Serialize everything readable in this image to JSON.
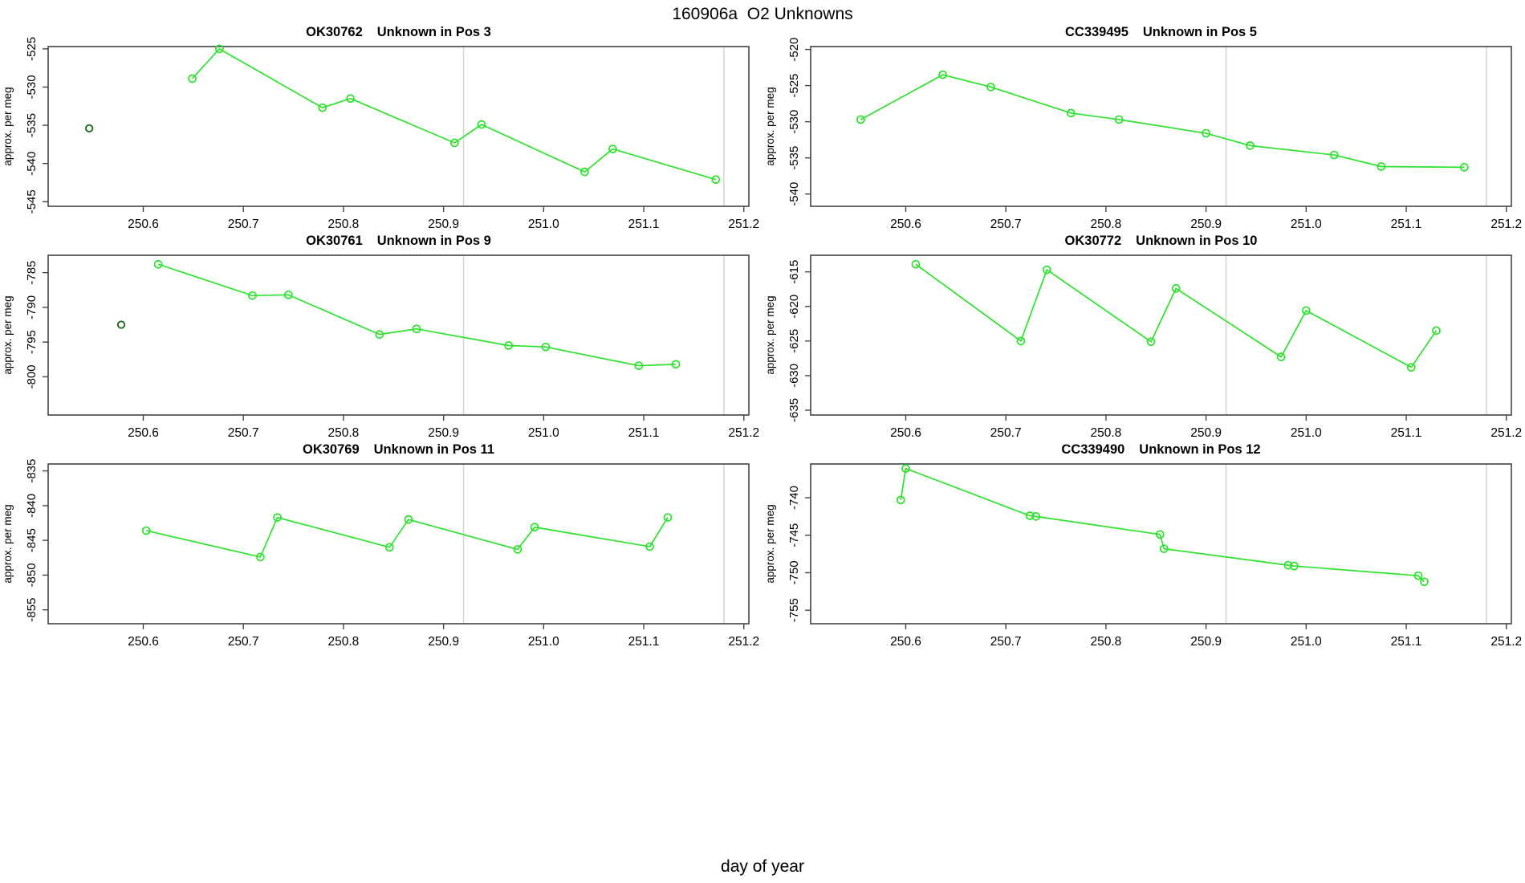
{
  "figure": {
    "title": "160906a  O2 Unknowns",
    "xlabel": "day of year",
    "ylabel": "approx. per meg",
    "line_color": "#2ce22c",
    "outlier_color": "#1e6b1e",
    "refline_color": "#d6d6d6",
    "axis_color": "#444444",
    "text_color": "#000000",
    "background": "#ffffff",
    "xlim": [
      250.505,
      251.205
    ],
    "x_ticks": [
      250.6,
      250.7,
      250.8,
      250.9,
      251.0,
      251.1,
      251.2
    ],
    "reference_lines_x": [
      250.92,
      251.18
    ],
    "grid": false,
    "legend": "none"
  },
  "chart_data": [
    {
      "type": "line",
      "sample": "OK30762",
      "label": "Unknown in Pos 3",
      "ylabel": "approx. per meg",
      "ylim": [
        -545.6,
        -524.7
      ],
      "y_ticks": [
        -525,
        -530,
        -535,
        -540,
        -545
      ],
      "series": [
        {
          "name": "run",
          "points": [
            [
              250.649,
              -528.9
            ],
            [
              250.676,
              -525.0
            ],
            [
              250.779,
              -532.7
            ],
            [
              250.807,
              -531.5
            ],
            [
              250.911,
              -537.3
            ],
            [
              250.938,
              -534.9
            ],
            [
              251.041,
              -541.1
            ],
            [
              251.069,
              -538.1
            ],
            [
              251.172,
              -542.1
            ]
          ]
        }
      ],
      "outliers": [
        [
          250.546,
          -535.4
        ]
      ]
    },
    {
      "type": "line",
      "sample": "CC339495",
      "label": "Unknown in Pos 5",
      "ylabel": "approx. per meg",
      "ylim": [
        -541.7,
        -519.6
      ],
      "y_ticks": [
        -520,
        -525,
        -530,
        -535,
        -540
      ],
      "series": [
        {
          "name": "run",
          "points": [
            [
              250.555,
              -529.7
            ],
            [
              250.637,
              -523.5
            ],
            [
              250.685,
              -525.2
            ],
            [
              250.765,
              -528.8
            ],
            [
              250.813,
              -529.7
            ],
            [
              250.9,
              -531.6
            ],
            [
              250.944,
              -533.3
            ],
            [
              251.028,
              -534.6
            ],
            [
              251.075,
              -536.2
            ],
            [
              251.158,
              -536.3
            ]
          ]
        }
      ],
      "outliers": []
    },
    {
      "type": "line",
      "sample": "OK30761",
      "label": "Unknown in Pos 9",
      "ylabel": "approx. per meg",
      "ylim": [
        -805.5,
        -782.5
      ],
      "y_ticks": [
        -785,
        -790,
        -795,
        -800
      ],
      "series": [
        {
          "name": "run",
          "points": [
            [
              250.615,
              -783.8
            ],
            [
              250.709,
              -788.3
            ],
            [
              250.745,
              -788.2
            ],
            [
              250.836,
              -793.9
            ],
            [
              250.873,
              -793.1
            ],
            [
              250.965,
              -795.5
            ],
            [
              251.002,
              -795.7
            ],
            [
              251.095,
              -798.4
            ],
            [
              251.132,
              -798.2
            ]
          ]
        }
      ],
      "outliers": [
        [
          250.578,
          -792.5
        ]
      ]
    },
    {
      "type": "line",
      "sample": "OK30772",
      "label": "Unknown in Pos 10",
      "ylabel": "approx. per meg",
      "ylim": [
        -635.7,
        -612.6
      ],
      "y_ticks": [
        -615,
        -620,
        -625,
        -630,
        -635
      ],
      "series": [
        {
          "name": "run",
          "points": [
            [
              250.61,
              -613.9
            ],
            [
              250.715,
              -625.0
            ],
            [
              250.741,
              -614.7
            ],
            [
              250.845,
              -625.1
            ],
            [
              250.87,
              -617.4
            ],
            [
              250.975,
              -627.3
            ],
            [
              251.0,
              -620.6
            ],
            [
              251.105,
              -628.8
            ],
            [
              251.13,
              -623.5
            ]
          ]
        }
      ],
      "outliers": []
    },
    {
      "type": "line",
      "sample": "OK30769",
      "label": "Unknown in Pos 11",
      "ylabel": "approx. per meg",
      "ylim": [
        -857.0,
        -834.0
      ],
      "y_ticks": [
        -835,
        -840,
        -845,
        -850,
        -855
      ],
      "series": [
        {
          "name": "run",
          "points": [
            [
              250.603,
              -843.6
            ],
            [
              250.717,
              -847.4
            ],
            [
              250.734,
              -841.7
            ],
            [
              250.846,
              -846.0
            ],
            [
              250.865,
              -842.0
            ],
            [
              250.974,
              -846.3
            ],
            [
              250.991,
              -843.1
            ],
            [
              251.106,
              -845.9
            ],
            [
              251.124,
              -841.7
            ]
          ]
        }
      ],
      "outliers": []
    },
    {
      "type": "line",
      "sample": "CC339490",
      "label": "Unknown in Pos 12",
      "ylabel": "approx. per meg",
      "ylim": [
        -756.8,
        -735.5
      ],
      "y_ticks": [
        -740,
        -745,
        -750,
        -755
      ],
      "series": [
        {
          "name": "run",
          "points": [
            [
              250.595,
              -740.3
            ],
            [
              250.6,
              -736.1
            ],
            [
              250.724,
              -742.4
            ],
            [
              250.73,
              -742.5
            ],
            [
              250.854,
              -744.9
            ],
            [
              250.858,
              -746.8
            ],
            [
              250.982,
              -749.0
            ],
            [
              250.988,
              -749.1
            ],
            [
              251.112,
              -750.4
            ],
            [
              251.118,
              -751.2
            ]
          ]
        }
      ],
      "outliers": []
    }
  ]
}
